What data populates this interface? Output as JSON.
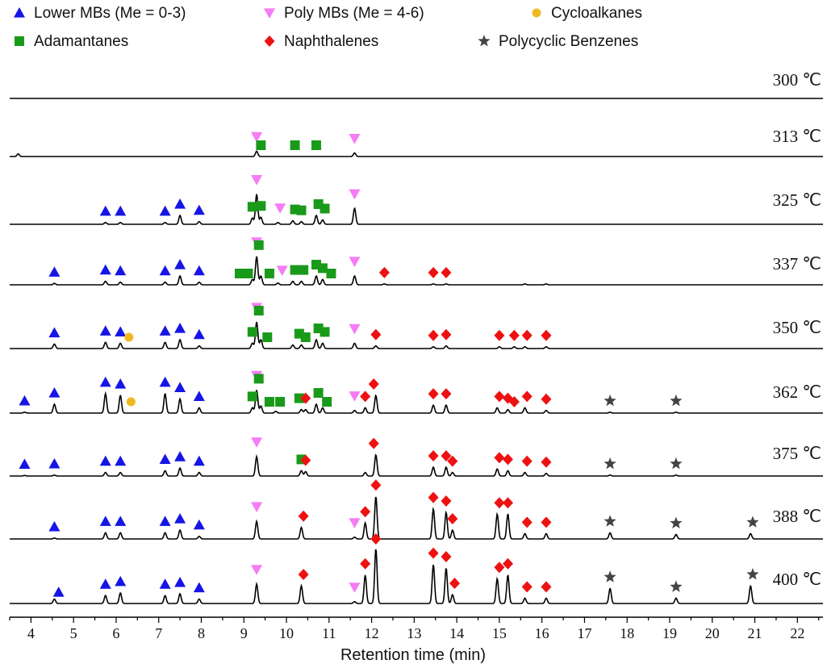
{
  "chart_data": {
    "type": "line",
    "xlabel": "Retention time (min)",
    "xlim": [
      3.5,
      22.6
    ],
    "x_ticks": [
      4,
      5,
      6,
      7,
      8,
      9,
      10,
      11,
      12,
      13,
      14,
      15,
      16,
      17,
      18,
      19,
      20,
      21,
      22
    ],
    "legend_placement": "top",
    "legend": [
      {
        "key": "lower_mb",
        "label": "Lower MBs (Me = 0-3)",
        "marker": "triangle-up",
        "color": "#1515e6"
      },
      {
        "key": "poly_mb",
        "label": "Poly MBs (Me = 4-6)",
        "marker": "triangle-down",
        "color": "#f57cf5"
      },
      {
        "key": "cycloalkane",
        "label": "Cycloalkanes",
        "marker": "circle",
        "color": "#f0b820"
      },
      {
        "key": "adamantane",
        "label": "Adamantanes",
        "marker": "square",
        "color": "#1a9a1a"
      },
      {
        "key": "naphthalene",
        "label": "Naphthalenes",
        "marker": "diamond",
        "color": "#ee1111"
      },
      {
        "key": "polycyclic_benzene",
        "label": "Polycyclic Benzenes",
        "marker": "star",
        "color": "#444444"
      }
    ],
    "series": [
      {
        "temperature": "300 ℃",
        "peaks": [],
        "markers": {}
      },
      {
        "temperature": "313 ℃",
        "peaks": [
          [
            3.7,
            0.15
          ],
          [
            9.3,
            0.3
          ],
          [
            11.6,
            0.2
          ]
        ],
        "markers": {
          "poly_mb": [
            9.3,
            11.6
          ],
          "adamantane": [
            9.4,
            10.2,
            10.7
          ]
        }
      },
      {
        "temperature": "325 ℃",
        "peaks": [
          [
            5.75,
            0.1
          ],
          [
            6.1,
            0.1
          ],
          [
            7.15,
            0.1
          ],
          [
            7.5,
            0.5
          ],
          [
            7.95,
            0.15
          ],
          [
            9.2,
            0.35
          ],
          [
            9.3,
            1.7
          ],
          [
            9.4,
            0.4
          ],
          [
            9.8,
            0.1
          ],
          [
            10.15,
            0.2
          ],
          [
            10.35,
            0.15
          ],
          [
            10.7,
            0.5
          ],
          [
            10.85,
            0.25
          ],
          [
            11.6,
            0.9
          ]
        ],
        "markers": {
          "lower_mb": [
            5.75,
            6.1,
            7.15,
            7.5,
            7.95
          ],
          "poly_mb": [
            9.3,
            9.85,
            11.6
          ],
          "adamantane": [
            9.2,
            9.4,
            10.2,
            10.35,
            10.75,
            10.9
          ]
        }
      },
      {
        "temperature": "337 ℃",
        "peaks": [
          [
            4.55,
            0.08
          ],
          [
            5.75,
            0.2
          ],
          [
            6.1,
            0.15
          ],
          [
            7.15,
            0.15
          ],
          [
            7.5,
            0.5
          ],
          [
            7.95,
            0.15
          ],
          [
            9.2,
            0.3
          ],
          [
            9.3,
            1.6
          ],
          [
            9.4,
            0.5
          ],
          [
            9.8,
            0.1
          ],
          [
            10.15,
            0.2
          ],
          [
            10.35,
            0.2
          ],
          [
            10.7,
            0.5
          ],
          [
            10.85,
            0.3
          ],
          [
            11.6,
            0.5
          ],
          [
            12.3,
            0.05
          ],
          [
            13.45,
            0.05
          ],
          [
            13.75,
            0.05
          ],
          [
            15.6,
            0.05
          ],
          [
            16.1,
            0.05
          ]
        ],
        "markers": {
          "lower_mb": [
            4.55,
            5.75,
            6.1,
            7.15,
            7.5,
            7.95
          ],
          "poly_mb": [
            9.3,
            9.9,
            11.6
          ],
          "adamantane": [
            8.9,
            9.1,
            9.35,
            9.6,
            10.2,
            10.4,
            10.7,
            10.85,
            11.05
          ],
          "naphthalene": [
            12.3,
            13.45,
            13.75
          ]
        }
      },
      {
        "temperature": "350 ℃",
        "peaks": [
          [
            4.55,
            0.25
          ],
          [
            5.75,
            0.35
          ],
          [
            6.1,
            0.3
          ],
          [
            7.15,
            0.35
          ],
          [
            7.5,
            0.5
          ],
          [
            7.95,
            0.15
          ],
          [
            9.2,
            0.3
          ],
          [
            9.3,
            1.5
          ],
          [
            9.4,
            0.5
          ],
          [
            10.15,
            0.2
          ],
          [
            10.35,
            0.2
          ],
          [
            10.7,
            0.5
          ],
          [
            10.85,
            0.3
          ],
          [
            11.6,
            0.3
          ],
          [
            12.1,
            0.15
          ],
          [
            13.45,
            0.1
          ],
          [
            13.75,
            0.15
          ],
          [
            15.0,
            0.1
          ],
          [
            15.35,
            0.1
          ],
          [
            15.6,
            0.1
          ],
          [
            16.1,
            0.1
          ]
        ],
        "markers": {
          "lower_mb": [
            4.55,
            5.75,
            6.1,
            7.15,
            7.5,
            7.95
          ],
          "poly_mb": [
            9.3,
            11.6
          ],
          "cycloalkane": [
            6.3
          ],
          "adamantane": [
            9.2,
            9.35,
            9.55,
            10.3,
            10.45,
            10.75,
            10.9
          ],
          "naphthalene": [
            12.1,
            13.45,
            13.75,
            15.0,
            15.35,
            15.65,
            16.1
          ]
        }
      },
      {
        "temperature": "362 ℃",
        "peaks": [
          [
            3.85,
            0.05
          ],
          [
            4.55,
            0.5
          ],
          [
            5.75,
            1.1
          ],
          [
            6.1,
            1.0
          ],
          [
            7.15,
            1.1
          ],
          [
            7.5,
            0.8
          ],
          [
            7.95,
            0.3
          ],
          [
            9.2,
            0.3
          ],
          [
            9.3,
            1.3
          ],
          [
            9.4,
            0.4
          ],
          [
            9.75,
            0.1
          ],
          [
            10.35,
            0.2
          ],
          [
            10.45,
            0.2
          ],
          [
            10.7,
            0.5
          ],
          [
            10.85,
            0.3
          ],
          [
            11.6,
            0.15
          ],
          [
            11.85,
            0.3
          ],
          [
            12.1,
            1.0
          ],
          [
            13.45,
            0.45
          ],
          [
            13.75,
            0.45
          ],
          [
            14.95,
            0.3
          ],
          [
            15.2,
            0.2
          ],
          [
            15.6,
            0.3
          ],
          [
            16.1,
            0.15
          ],
          [
            17.6,
            0.05
          ],
          [
            19.15,
            0.05
          ]
        ],
        "markers": {
          "lower_mb": [
            3.85,
            4.55,
            5.75,
            6.1,
            7.15,
            7.5,
            7.95
          ],
          "poly_mb": [
            9.3,
            11.6
          ],
          "cycloalkane": [
            6.35
          ],
          "adamantane": [
            9.2,
            9.35,
            9.6,
            9.85,
            10.3,
            10.75,
            10.95
          ],
          "naphthalene": [
            10.45,
            11.85,
            12.05,
            13.45,
            13.75,
            15.0,
            15.2,
            15.35,
            15.65,
            16.1
          ],
          "polycyclic_benzene": [
            17.6,
            19.15
          ]
        }
      },
      {
        "temperature": "375 ℃",
        "peaks": [
          [
            3.85,
            0.03
          ],
          [
            4.55,
            0.05
          ],
          [
            5.75,
            0.2
          ],
          [
            6.1,
            0.2
          ],
          [
            7.15,
            0.3
          ],
          [
            7.5,
            0.45
          ],
          [
            7.95,
            0.2
          ],
          [
            9.3,
            1.1
          ],
          [
            10.35,
            0.3
          ],
          [
            10.45,
            0.25
          ],
          [
            11.85,
            0.2
          ],
          [
            12.1,
            1.2
          ],
          [
            13.45,
            0.5
          ],
          [
            13.75,
            0.5
          ],
          [
            13.9,
            0.2
          ],
          [
            14.95,
            0.4
          ],
          [
            15.2,
            0.3
          ],
          [
            15.6,
            0.2
          ],
          [
            16.1,
            0.15
          ],
          [
            17.6,
            0.05
          ],
          [
            19.15,
            0.05
          ]
        ],
        "markers": {
          "lower_mb": [
            3.85,
            4.55,
            5.75,
            6.1,
            7.15,
            7.5,
            7.95
          ],
          "poly_mb": [
            9.3
          ],
          "adamantane": [
            10.35
          ],
          "naphthalene": [
            10.45,
            12.05,
            13.45,
            13.75,
            13.9,
            15.0,
            15.2,
            15.65,
            16.1
          ],
          "polycyclic_benzene": [
            17.6,
            19.15
          ]
        }
      },
      {
        "temperature": "388 ℃",
        "peaks": [
          [
            4.55,
            0.05
          ],
          [
            5.75,
            0.35
          ],
          [
            6.1,
            0.35
          ],
          [
            7.15,
            0.35
          ],
          [
            7.5,
            0.5
          ],
          [
            7.95,
            0.15
          ],
          [
            9.3,
            1.0
          ],
          [
            10.35,
            0.65
          ],
          [
            11.6,
            0.1
          ],
          [
            11.85,
            0.9
          ],
          [
            12.1,
            2.4
          ],
          [
            13.45,
            1.7
          ],
          [
            13.75,
            1.5
          ],
          [
            13.9,
            0.5
          ],
          [
            14.95,
            1.4
          ],
          [
            15.2,
            1.4
          ],
          [
            15.6,
            0.3
          ],
          [
            16.1,
            0.3
          ],
          [
            17.6,
            0.35
          ],
          [
            19.15,
            0.25
          ],
          [
            20.9,
            0.3
          ]
        ],
        "markers": {
          "lower_mb": [
            4.55,
            5.75,
            6.1,
            7.15,
            7.5,
            7.95
          ],
          "poly_mb": [
            9.3,
            11.6
          ],
          "naphthalene": [
            10.4,
            11.85,
            12.1,
            13.45,
            13.75,
            13.9,
            15.0,
            15.2,
            15.65,
            16.1
          ],
          "polycyclic_benzene": [
            17.6,
            19.15,
            20.95
          ]
        }
      },
      {
        "temperature": "400 ℃",
        "peaks": [
          [
            4.55,
            0.25
          ],
          [
            5.75,
            0.45
          ],
          [
            6.1,
            0.6
          ],
          [
            7.15,
            0.45
          ],
          [
            7.5,
            0.55
          ],
          [
            7.95,
            0.25
          ],
          [
            9.3,
            1.1
          ],
          [
            10.35,
            1.0
          ],
          [
            11.6,
            0.1
          ],
          [
            11.85,
            1.6
          ],
          [
            12.1,
            3.1
          ],
          [
            13.45,
            2.2
          ],
          [
            13.75,
            2.0
          ],
          [
            13.9,
            0.5
          ],
          [
            14.95,
            1.4
          ],
          [
            15.2,
            1.6
          ],
          [
            15.6,
            0.3
          ],
          [
            16.1,
            0.3
          ],
          [
            17.6,
            0.85
          ],
          [
            19.15,
            0.3
          ],
          [
            20.9,
            1.0
          ]
        ],
        "markers": {
          "lower_mb": [
            4.65,
            5.75,
            6.1,
            7.15,
            7.5,
            7.95
          ],
          "poly_mb": [
            9.3,
            11.6
          ],
          "naphthalene": [
            10.4,
            11.85,
            12.1,
            13.45,
            13.75,
            13.95,
            15.0,
            15.2,
            15.65,
            16.1
          ],
          "polycyclic_benzene": [
            17.6,
            19.15,
            20.95
          ]
        }
      }
    ]
  }
}
